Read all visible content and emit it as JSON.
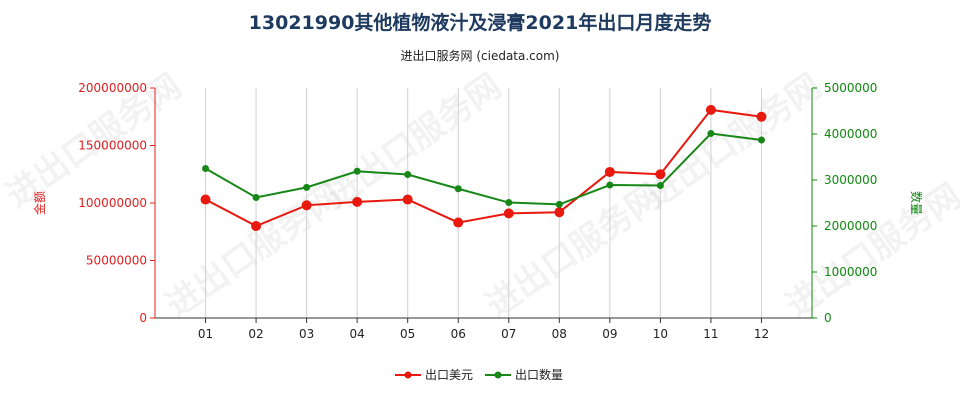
{
  "page": {
    "title": "13021990其他植物液汁及浸膏2021年出口月度走势",
    "subtitle": "进出口服务网 (ciedata.com)",
    "watermark": "进出口服务网"
  },
  "colors": {
    "left_axis": "#e02020",
    "right_axis": "#118811",
    "series_amount": "#e8190f",
    "series_qty": "#178717",
    "grid": "#d0d0d0",
    "title": "#1f3a5f"
  },
  "chart_data": {
    "type": "line",
    "categories": [
      "01",
      "02",
      "03",
      "04",
      "05",
      "06",
      "07",
      "08",
      "09",
      "10",
      "11",
      "12"
    ],
    "ylabel_left": "金额",
    "ylabel_right": "数量",
    "ylim_left": [
      0,
      200000000
    ],
    "ylim_right": [
      0,
      5000000
    ],
    "yticks_left": [
      "0",
      "50000000",
      "100000000",
      "150000000",
      "200000000"
    ],
    "yticks_right": [
      "0",
      "1000000",
      "2000000",
      "3000000",
      "4000000",
      "5000000"
    ],
    "grid": "vertical",
    "legend_position": "bottom-center",
    "series": [
      {
        "name": "出口美元",
        "axis": "left",
        "values": [
          103000000,
          80000000,
          98000000,
          101000000,
          103000000,
          83000000,
          91000000,
          92000000,
          127000000,
          125000000,
          181000000,
          175000000
        ]
      },
      {
        "name": "出口数量",
        "axis": "right",
        "values": [
          3250000,
          2620000,
          2840000,
          3190000,
          3120000,
          2810000,
          2510000,
          2470000,
          2890000,
          2880000,
          4010000,
          3870000
        ]
      }
    ]
  }
}
